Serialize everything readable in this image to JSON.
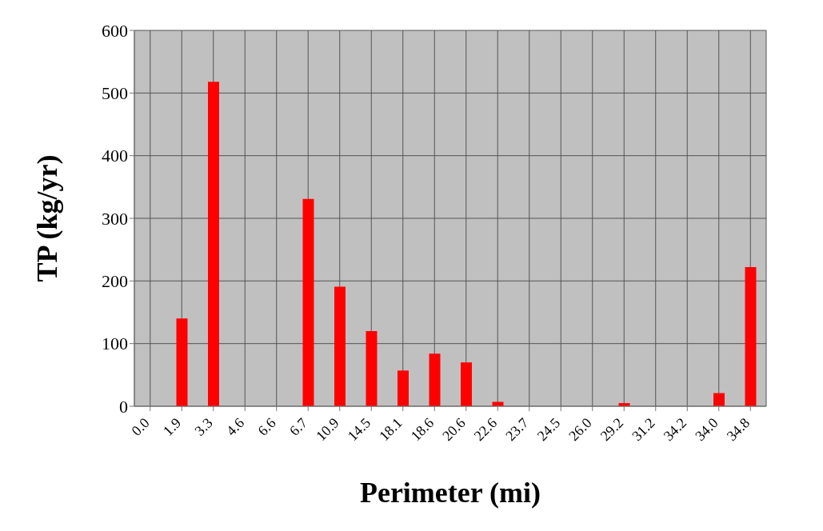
{
  "chart_data": {
    "type": "bar",
    "xlabel": "Perimeter (mi)",
    "ylabel": "TP (kg/yr)",
    "categories": [
      "0.0",
      "1.9",
      "3.3",
      "4.6",
      "6.6",
      "6.7",
      "10.9",
      "14.5",
      "18.1",
      "18.6",
      "20.6",
      "22.6",
      "23.7",
      "24.5",
      "26.0",
      "29.2",
      "31.2",
      "34.2",
      "34.0",
      "34.8"
    ],
    "values": [
      null,
      140,
      518,
      null,
      null,
      331,
      191,
      120,
      57,
      84,
      70,
      7,
      null,
      null,
      null,
      5,
      null,
      null,
      21,
      222
    ],
    "color": "#ff0000",
    "ylim": [
      0,
      600
    ],
    "yticks": [
      0,
      100,
      200,
      300,
      400,
      500,
      600
    ],
    "grid": true,
    "legend": false
  }
}
